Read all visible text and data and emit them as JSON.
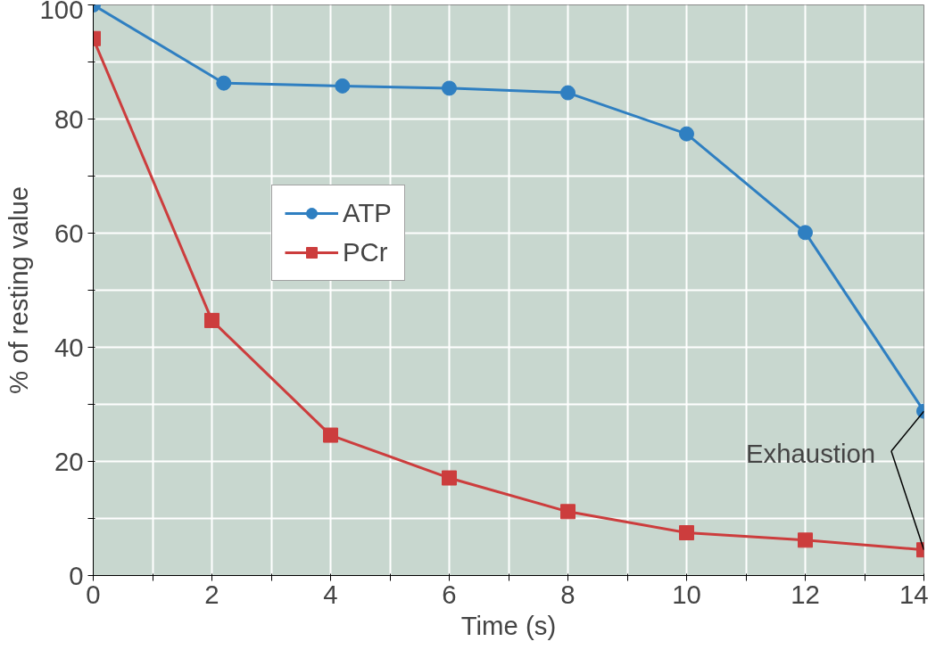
{
  "chart_data": {
    "type": "line",
    "xlabel": "Time (s)",
    "ylabel": "% of resting value",
    "xlim": [
      0,
      14
    ],
    "ylim": [
      0,
      100
    ],
    "xticks": [
      0,
      {
        "value": 1,
        "label": null
      },
      2,
      {
        "value": 3,
        "label": null
      },
      4,
      {
        "value": 5,
        "label": null
      },
      6,
      {
        "value": 7,
        "label": null
      },
      8,
      {
        "value": 9,
        "label": null
      },
      10,
      {
        "value": 11,
        "label": null
      },
      12,
      {
        "value": 13,
        "label": null
      },
      14
    ],
    "yticks": [
      0,
      {
        "value": 10,
        "label": null
      },
      20,
      {
        "value": 30,
        "label": null
      },
      40,
      {
        "value": 50,
        "label": null
      },
      60,
      {
        "value": 70,
        "label": null
      },
      80,
      {
        "value": 90,
        "label": null
      },
      100
    ],
    "grid": true,
    "legend": "center",
    "line_style": "solid",
    "series": [
      {
        "name": "ATP",
        "color": "#2f7fc1",
        "marker": "circle",
        "x": [
          0,
          2.2,
          4.2,
          6,
          8,
          10,
          12,
          14
        ],
        "values": [
          100,
          86.3,
          85.8,
          85.4,
          84.6,
          77.4,
          60.1,
          28.8
        ]
      },
      {
        "name": "PCr",
        "color": "#cc3d3d",
        "marker": "square",
        "x": [
          0,
          2,
          4,
          6,
          8,
          10,
          12,
          14
        ],
        "values": [
          94.1,
          44.7,
          24.6,
          17.1,
          11.2,
          7.5,
          6.2,
          4.5
        ]
      }
    ],
    "annotations": [
      {
        "text": "Exhaustion",
        "x": 14,
        "y": 28.8
      }
    ]
  }
}
